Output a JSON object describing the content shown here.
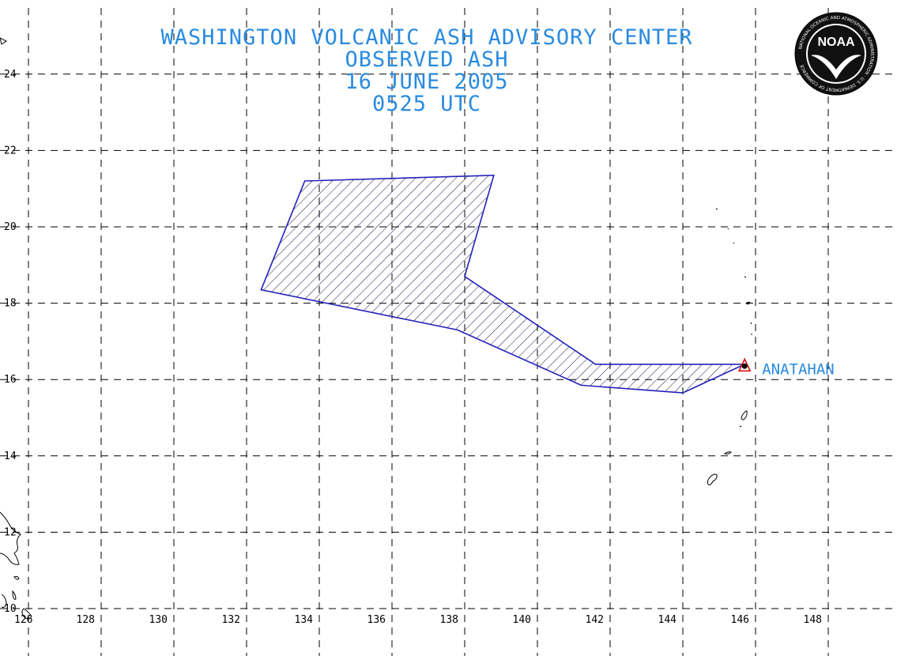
{
  "title": {
    "line1": "WASHINGTON VOLCANIC ASH ADVISORY CENTER",
    "line2": "OBSERVED ASH",
    "line3": "16 JUNE 2005",
    "line4": "0525 UTC"
  },
  "logo": {
    "text": "NOAA",
    "ring_text": "NATIONAL OCEANIC AND ATMOSPHERIC ADMINISTRATION · U.S. DEPARTMENT OF COMMERCE"
  },
  "map": {
    "lon_range": [
      126,
      150
    ],
    "lat_range": [
      9.7,
      25.6
    ],
    "lon_ticks": [
      128,
      130,
      132,
      134,
      136,
      138,
      140,
      142,
      144,
      146,
      148
    ],
    "lat_ticks": [
      12,
      14,
      16,
      18,
      20,
      22,
      24
    ],
    "edge_tick_labels": {
      "lon": "126",
      "lat": "10"
    },
    "grid": "dashed",
    "colors": {
      "ash_outline": "#2222bb",
      "ash_hatch": "#1a1a44",
      "text": "#2a8be0",
      "volcano": "#dd1111"
    }
  },
  "ash_area": {
    "vertices": [
      [
        133.6,
        21.2
      ],
      [
        138.8,
        21.35
      ],
      [
        138.0,
        18.7
      ],
      [
        141.6,
        16.4
      ],
      [
        145.7,
        16.4
      ],
      [
        144.0,
        15.65
      ],
      [
        141.2,
        15.85
      ],
      [
        137.8,
        17.3
      ],
      [
        132.4,
        18.35
      ]
    ]
  },
  "volcano": {
    "name": "ANATAHAN",
    "lon": 145.7,
    "lat": 16.35
  }
}
